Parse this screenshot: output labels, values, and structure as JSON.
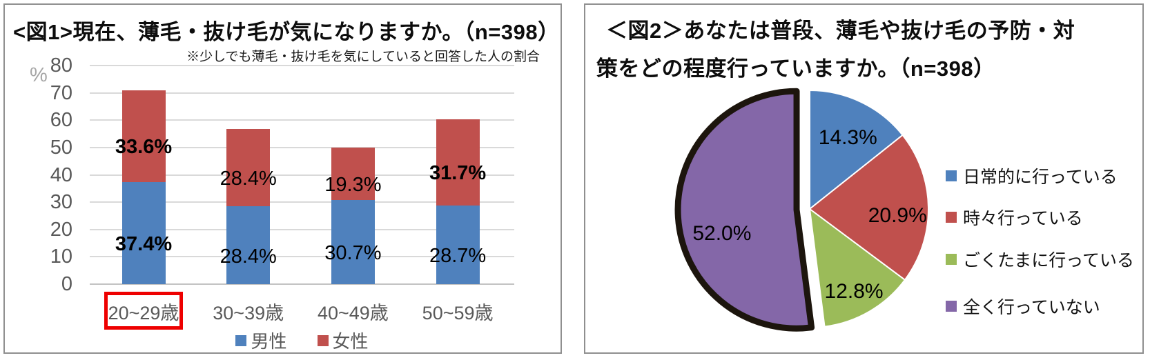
{
  "figure1": {
    "title": "<図1>現在、薄毛・抜け毛が気になりますか。（n=398）",
    "note": "※少しでも薄毛・抜け毛を気にしていると回答した人の割合"
  },
  "figure2": {
    "title_line1": "＜図2＞あなたは普段、薄毛や抜け毛の予防・対",
    "title_line2": "策をどの程度行っていますか。（n=398）"
  },
  "chart_data": [
    {
      "type": "bar",
      "stacked": true,
      "title": "<図1>現在、薄毛・抜け毛が気になりますか。（n=398）",
      "subtitle": "※少しでも薄毛・抜け毛を気にしていると回答した人の割合",
      "unit": "%",
      "categories": [
        "20~29歳",
        "30~39歳",
        "40~49歳",
        "50~59歳"
      ],
      "series": [
        {
          "name": "男性",
          "color": "#4f81bd",
          "values": [
            37.4,
            28.4,
            30.7,
            28.7
          ],
          "value_labels": [
            "37.4%",
            "28.4%",
            "30.7%",
            "28.7%"
          ],
          "bold_labels": [
            true,
            false,
            false,
            false
          ]
        },
        {
          "name": "女性",
          "color": "#c0504d",
          "values": [
            33.6,
            28.4,
            19.3,
            31.7
          ],
          "value_labels": [
            "33.6%",
            "28.4%",
            "19.3%",
            "31.7%"
          ],
          "bold_labels": [
            true,
            false,
            false,
            true
          ]
        }
      ],
      "ylim": [
        0,
        80
      ],
      "ytick_step": 10,
      "grid": true,
      "legend_position": "bottom",
      "highlighted_category": "20~29歳",
      "highlight_color": "#ee0000"
    },
    {
      "type": "pie",
      "title": "＜図2＞あなたは普段、薄毛や抜け毛の予防・対策をどの程度行っていますか。（n=398）",
      "labels": [
        "日常的に行っている",
        "時々行っている",
        "ごくたまに行っている",
        "全く行っていない"
      ],
      "values": [
        14.3,
        20.9,
        12.8,
        52.0
      ],
      "value_labels": [
        "14.3%",
        "20.9%",
        "12.8%",
        "52.0%"
      ],
      "colors": [
        "#4f81bd",
        "#c0504d",
        "#9bbb59",
        "#8467a8"
      ],
      "start_angle": "top",
      "direction": "clockwise",
      "exploded_slice": "全く行っていない",
      "explode_border_color": "#1c150d",
      "legend_position": "right"
    }
  ]
}
